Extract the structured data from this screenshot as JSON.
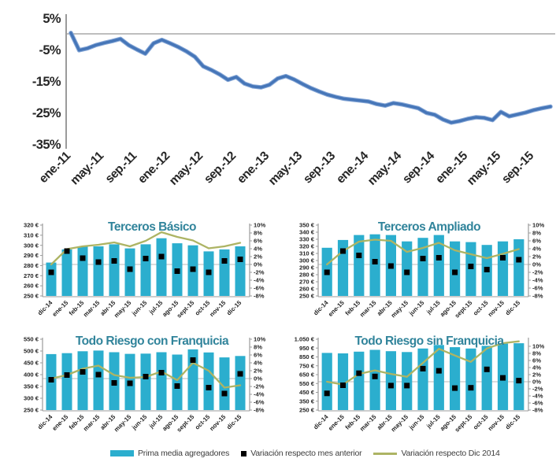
{
  "colors": {
    "bar_teal": "#2BAECE",
    "main_line_blue": "#4676B8",
    "main_line_halo": "#85A6D6",
    "olive_line": "#ADB464",
    "marker_black": "#000000",
    "title_teal": "#31849B",
    "axis_text": "#262626",
    "axis_line": "#9B9B9B",
    "grid_line": "#C8C8C8"
  },
  "legend": {
    "items": [
      {
        "label": "Prima media agregadores",
        "marker": "bar-swatch",
        "color": "#2BAECE"
      },
      {
        "label": "Variación respecto mes anterior",
        "marker": "square-swatch",
        "color": "#000000"
      },
      {
        "label": "Variación respecto Dic 2014",
        "marker": "line-swatch",
        "color": "#ADB464"
      }
    ]
  },
  "chart_data": [
    {
      "id": "main",
      "type": "line",
      "title": "",
      "ylabel": "",
      "ylim": [
        -35,
        5
      ],
      "y_ticks": [
        {
          "v": 5,
          "label": "5%"
        },
        {
          "v": -5,
          "label": "-5%"
        },
        {
          "v": -15,
          "label": "-15%"
        },
        {
          "v": -25,
          "label": "-25%"
        },
        {
          "v": -35,
          "label": "-35%"
        }
      ],
      "x_tick_labels": [
        "ene.-11",
        "may.-11",
        "sep.-11",
        "ene.-12",
        "may.-12",
        "sep.-12",
        "ene.-13",
        "may.-13",
        "sep.-13",
        "ene.-14",
        "may.-14",
        "sep.-14",
        "ene.-15",
        "may.-15",
        "sep.-15"
      ],
      "x_tick_indices": [
        0,
        4,
        8,
        12,
        16,
        20,
        24,
        28,
        32,
        36,
        40,
        44,
        48,
        52,
        56
      ],
      "values": [
        0.3,
        -5.2,
        -4.6,
        -3.6,
        -2.9,
        -2.3,
        -1.6,
        -3.6,
        -5.0,
        -6.3,
        -3.0,
        -1.9,
        -3.0,
        -4.2,
        -5.6,
        -7.3,
        -10.3,
        -11.5,
        -12.9,
        -14.6,
        -13.7,
        -15.8,
        -16.7,
        -17.0,
        -16.2,
        -14.2,
        -13.4,
        -14.5,
        -15.9,
        -17.2,
        -18.3,
        -19.3,
        -20.0,
        -20.6,
        -20.9,
        -21.2,
        -21.5,
        -22.3,
        -22.8,
        -22.0,
        -22.4,
        -23.0,
        -23.6,
        -25.1,
        -25.7,
        -27.2,
        -28.2,
        -27.7,
        -27.0,
        -26.5,
        -26.7,
        -27.4,
        -24.8,
        -26.2,
        -25.6,
        -25.0,
        -24.2,
        -23.6,
        -23.1
      ]
    },
    {
      "id": "tb",
      "type": "combo",
      "title": "Terceros Básico",
      "categories": [
        "dic-14",
        "ene-15",
        "feb-15",
        "mar-15",
        "abr-15",
        "may-15",
        "jun-15",
        "jul-15",
        "ago-15",
        "sept-15",
        "oct-15",
        "nov-15",
        "dic-15"
      ],
      "left_axis": {
        "unit": "€",
        "min": 250,
        "max": 320,
        "ticks": [
          "320 €",
          "310 €",
          "300 €",
          "290 €",
          "280 €",
          "270 €",
          "260 €",
          "250 €"
        ]
      },
      "right_axis": {
        "unit": "%",
        "min": -8,
        "max": 10,
        "ticks": [
          {
            "v": 10,
            "label": "10%"
          },
          {
            "v": 8,
            "label": "8%"
          },
          {
            "v": 6,
            "label": "6%"
          },
          {
            "v": 4,
            "label": "4%"
          },
          {
            "v": 2,
            "label": "2%"
          },
          {
            "v": 0,
            "label": "0%"
          },
          {
            "v": -2,
            "label": "-2%"
          },
          {
            "v": -4,
            "label": "-4%"
          },
          {
            "v": -6,
            "label": "-6%"
          },
          {
            "v": -8,
            "label": "-8%"
          }
        ]
      },
      "series": [
        {
          "name": "Prima media agregadores",
          "type": "bar",
          "axis": "left",
          "values": [
            283,
            296,
            299,
            299,
            301,
            297,
            301,
            307,
            302,
            300,
            294,
            296,
            299
          ]
        },
        {
          "name": "Variación respecto mes anterior",
          "type": "scatter",
          "axis": "right",
          "values": [
            -2.0,
            3.4,
            1.6,
            0.6,
            0.9,
            -1.2,
            1.5,
            2.0,
            -1.7,
            -1.2,
            -2.0,
            0.9,
            1.3
          ]
        },
        {
          "name": "Variación respecto Dic 2014",
          "type": "line",
          "axis": "right",
          "values": [
            0,
            3.9,
            4.6,
            5.0,
            5.6,
            4.6,
            6.0,
            8.2,
            7.0,
            6.1,
            4.1,
            4.6,
            5.5
          ]
        }
      ]
    },
    {
      "id": "ta",
      "type": "combo",
      "title": "Terceros Ampliado",
      "categories": [
        "dic-14",
        "ene-15",
        "feb-15",
        "mar-15",
        "abr-15",
        "may-15",
        "jun-15",
        "jul-15",
        "ago-15",
        "sept-15",
        "oct-15",
        "nov-15",
        "dic-15"
      ],
      "left_axis": {
        "unit": "€",
        "min": 250,
        "max": 350,
        "ticks": [
          "350 €",
          "340 €",
          "330 €",
          "320 €",
          "310 €",
          "300 €",
          "290 €",
          "280 €",
          "270 €",
          "260 €",
          "250 €"
        ]
      },
      "right_axis": {
        "unit": "%",
        "min": -8,
        "max": 10,
        "ticks": [
          {
            "v": 10,
            "label": "10%"
          },
          {
            "v": 8,
            "label": "8%"
          },
          {
            "v": 6,
            "label": "6%"
          },
          {
            "v": 4,
            "label": "4%"
          },
          {
            "v": 2,
            "label": "2%"
          },
          {
            "v": 0,
            "label": "0%"
          },
          {
            "v": -2,
            "label": "-2%"
          },
          {
            "v": -4,
            "label": "-4%"
          },
          {
            "v": -6,
            "label": "-6%"
          },
          {
            "v": -8,
            "label": "-8%"
          }
        ]
      },
      "series": [
        {
          "name": "Prima media agregadores",
          "type": "bar",
          "axis": "left",
          "values": [
            318,
            329,
            336,
            337,
            336,
            327,
            332,
            336,
            327,
            326,
            322,
            327,
            330
          ]
        },
        {
          "name": "Variación respecto mes anterior",
          "type": "scatter",
          "axis": "right",
          "values": [
            -2.0,
            3.4,
            2.3,
            0.7,
            -0.4,
            -2.0,
            1.5,
            1.7,
            -2.0,
            -0.5,
            -1.3,
            1.7,
            1.2
          ]
        },
        {
          "name": "Variación respecto Dic 2014",
          "type": "line",
          "axis": "right",
          "values": [
            0,
            3.4,
            5.8,
            6.3,
            6.0,
            3.2,
            4.2,
            5.5,
            3.6,
            2.6,
            1.6,
            2.7,
            3.9
          ]
        }
      ]
    },
    {
      "id": "trcf",
      "type": "combo",
      "title": "Todo Riesgo con Franquicia",
      "categories": [
        "dic-14",
        "ene-15",
        "feb-15",
        "mar-15",
        "abr-15",
        "may-15",
        "jun-15",
        "jul-15",
        "ago-15",
        "sept-15",
        "oct-15",
        "nov-15",
        "dic-15"
      ],
      "left_axis": {
        "unit": "€",
        "min": 250,
        "max": 550,
        "ticks": [
          "550 €",
          "500 €",
          "450 €",
          "400 €",
          "350 €",
          "300 €",
          "250 €"
        ]
      },
      "right_axis": {
        "unit": "%",
        "min": -8,
        "max": 10,
        "ticks": [
          {
            "v": 10,
            "label": "10%"
          },
          {
            "v": 8,
            "label": "8%"
          },
          {
            "v": 6,
            "label": "6%"
          },
          {
            "v": 4,
            "label": "4%"
          },
          {
            "v": 2,
            "label": "2%"
          },
          {
            "v": 0,
            "label": "0%"
          },
          {
            "v": -2,
            "label": "-2%"
          },
          {
            "v": -4,
            "label": "-4%"
          },
          {
            "v": -6,
            "label": "-6%"
          },
          {
            "v": -8,
            "label": "-8%"
          }
        ]
      },
      "series": [
        {
          "name": "Prima media agregadores",
          "type": "bar",
          "axis": "left",
          "values": [
            487,
            491,
            499,
            502,
            495,
            488,
            489,
            495,
            485,
            507,
            494,
            473,
            479
          ]
        },
        {
          "name": "Variación respecto mes anterior",
          "type": "scatter",
          "axis": "right",
          "values": [
            -0.3,
            0.9,
            1.7,
            1.0,
            -1.1,
            -1.2,
            0.5,
            1.5,
            -1.9,
            4.7,
            -2.3,
            -3.8,
            1.2
          ]
        },
        {
          "name": "Variación respecto Dic 2014",
          "type": "line",
          "axis": "right",
          "values": [
            0,
            0.9,
            2.5,
            3.3,
            0.9,
            0.2,
            0.4,
            1.8,
            -0.4,
            4.0,
            2.0,
            -2.3,
            -1.7
          ]
        }
      ]
    },
    {
      "id": "trsf",
      "type": "combo",
      "title": "Todo Riesgo sin Franquicia",
      "categories": [
        "dic-14",
        "ene-15",
        "feb-15",
        "mar-15",
        "abr-15",
        "may-15",
        "jun-15",
        "jul-15",
        "ago-15",
        "sept-15",
        "oct-15",
        "nov-15",
        "dic-15"
      ],
      "left_axis": {
        "unit": "€",
        "min": 250,
        "max": 1050,
        "ticks": [
          "1.050 €",
          "950 €",
          "850 €",
          "750 €",
          "650 €",
          "550 €",
          "450 €",
          "350 €",
          "250 €"
        ]
      },
      "right_axis": {
        "unit": "%",
        "min": -8,
        "max": 12,
        "ticks": [
          {
            "v": 10,
            "label": "10%"
          },
          {
            "v": 8,
            "label": "8%"
          },
          {
            "v": 6,
            "label": "6%"
          },
          {
            "v": 4,
            "label": "4%"
          },
          {
            "v": 2,
            "label": "2%"
          },
          {
            "v": 0,
            "label": "0%"
          },
          {
            "v": -2,
            "label": "-2%"
          },
          {
            "v": -4,
            "label": "-4%"
          },
          {
            "v": -6,
            "label": "-6%"
          },
          {
            "v": -8,
            "label": "-8%"
          }
        ]
      },
      "series": [
        {
          "name": "Prima media agregadores",
          "type": "bar",
          "axis": "left",
          "values": [
            895,
            890,
            910,
            930,
            915,
            905,
            945,
            985,
            960,
            945,
            975,
            1000,
            1005
          ]
        },
        {
          "name": "Variación respecto mes anterior",
          "type": "scatter",
          "axis": "right",
          "values": [
            -3.3,
            -1.0,
            2.4,
            1.5,
            -1.1,
            -1.1,
            3.7,
            3.1,
            -1.8,
            -1.7,
            3.5,
            1.1,
            0.3
          ]
        },
        {
          "name": "Variación respecto Dic 2014",
          "type": "line",
          "axis": "right",
          "values": [
            0,
            -0.8,
            2.2,
            3.2,
            2.2,
            1.4,
            5.3,
            9.3,
            7.4,
            5.6,
            9.4,
            10.9,
            11.4
          ]
        }
      ]
    }
  ]
}
